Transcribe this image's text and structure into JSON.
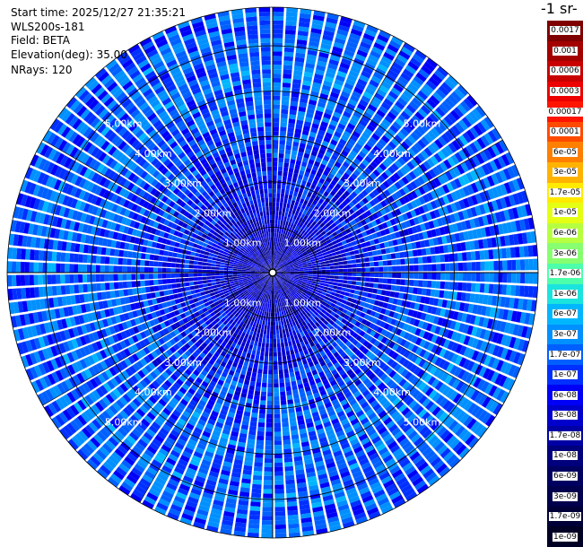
{
  "info": {
    "start_time": "Start time: 2025/12/27 21:35:21",
    "instrument": "WLS200s-181",
    "field": "Field: BETA",
    "elevation": "Elevation(deg): 35.00",
    "nrays": "NRays: 120"
  },
  "colorbar": {
    "unit_fragment": "-1 sr-",
    "labels": [
      "0.0017",
      "0.001",
      "0.0006",
      "0.0003",
      "0.00017",
      "0.0001",
      "6e-05",
      "3e-05",
      "1.7e-05",
      "1e-05",
      "6e-06",
      "3e-06",
      "1.7e-06",
      "1e-06",
      "6e-07",
      "3e-07",
      "1.7e-07",
      "1e-07",
      "6e-08",
      "3e-08",
      "1.7e-08",
      "1e-08",
      "6e-09",
      "3e-09",
      "1.7e-09",
      "1e-09"
    ],
    "colors": [
      "#7f0000",
      "#a30000",
      "#c80000",
      "#ec0000",
      "#ff1400",
      "#ff4b00",
      "#ff7f00",
      "#ffb300",
      "#ffea00",
      "#e4ff13",
      "#b6ff41",
      "#87ff70",
      "#4dffaa",
      "#1ae4dd",
      "#00b7ff",
      "#0090ff",
      "#0060ff",
      "#0030ff",
      "#0000f6",
      "#0000cd",
      "#0000a4",
      "#00007c",
      "#000060",
      "#00004c",
      "#000038",
      "#000024"
    ]
  },
  "chart_data": {
    "type": "heatmap",
    "projection": "polar-ppi",
    "field": "BETA",
    "elevation_deg": 35.0,
    "n_rays": 120,
    "range_unit": "km",
    "range_max_km": 5.85,
    "range_rings_km": [
      1,
      2,
      3,
      4,
      5
    ],
    "ring_labels": [
      "1.00km",
      "2.00km",
      "3.00km",
      "4.00km",
      "5.00km"
    ],
    "ring_label_directions": [
      "upper-left",
      "upper-right",
      "lower-left",
      "lower-right"
    ],
    "colorscale": "log",
    "value_range": [
      1e-09,
      0.0017
    ],
    "value_profile_by_range": [
      {
        "range_km": 0.5,
        "typical": 3e-08
      },
      {
        "range_km": 1.5,
        "typical": 6e-08
      },
      {
        "range_km": 2.5,
        "typical": 1.2e-07
      },
      {
        "range_km": 3.5,
        "typical": 2e-07
      },
      {
        "range_km": 4.5,
        "typical": 2.5e-07
      },
      {
        "range_km": 5.5,
        "typical": 2e-07
      }
    ]
  }
}
